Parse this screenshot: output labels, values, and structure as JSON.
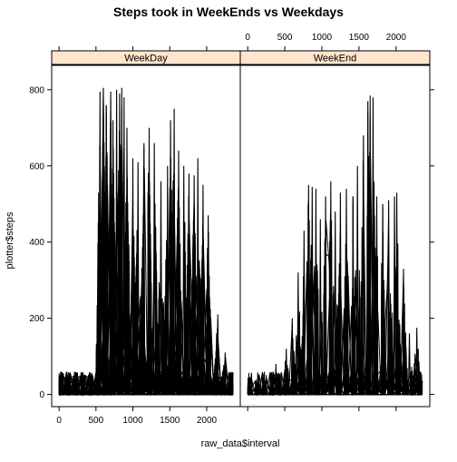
{
  "chart_data": {
    "type": "line",
    "title": "Steps took in WeekEnds vs Weekdays",
    "xlabel": "raw_data$interval",
    "ylabel": "plotter$steps",
    "xlim": [
      -100,
      2455
    ],
    "ylim": [
      -32,
      864
    ],
    "x_ticks": [
      0,
      500,
      1000,
      1500,
      2000
    ],
    "y_ticks": [
      0,
      200,
      400,
      600,
      800
    ],
    "grid": false,
    "strip_color": "#ffe5cc",
    "line_color": "#000000",
    "panels": [
      {
        "name": "WeekDay",
        "x_axis_position": "bottom",
        "peaks": [
          {
            "x": 555,
            "y": 795
          },
          {
            "x": 600,
            "y": 805
          },
          {
            "x": 640,
            "y": 760
          },
          {
            "x": 700,
            "y": 795
          },
          {
            "x": 730,
            "y": 720
          },
          {
            "x": 780,
            "y": 800
          },
          {
            "x": 820,
            "y": 790
          },
          {
            "x": 850,
            "y": 805
          },
          {
            "x": 880,
            "y": 780
          },
          {
            "x": 920,
            "y": 700
          },
          {
            "x": 1000,
            "y": 620
          },
          {
            "x": 1070,
            "y": 610
          },
          {
            "x": 1150,
            "y": 660
          },
          {
            "x": 1220,
            "y": 700
          },
          {
            "x": 1290,
            "y": 660
          },
          {
            "x": 1380,
            "y": 560
          },
          {
            "x": 1470,
            "y": 600
          },
          {
            "x": 1510,
            "y": 720
          },
          {
            "x": 1560,
            "y": 750
          },
          {
            "x": 1620,
            "y": 640
          },
          {
            "x": 1690,
            "y": 600
          },
          {
            "x": 1760,
            "y": 580
          },
          {
            "x": 1830,
            "y": 575
          },
          {
            "x": 1880,
            "y": 620
          },
          {
            "x": 1950,
            "y": 550
          },
          {
            "x": 2020,
            "y": 470
          },
          {
            "x": 2150,
            "y": 210
          },
          {
            "x": 2250,
            "y": 110
          }
        ]
      },
      {
        "name": "WeekEnd",
        "x_axis_position": "top",
        "peaks": [
          {
            "x": 50,
            "y": 55
          },
          {
            "x": 380,
            "y": 80
          },
          {
            "x": 520,
            "y": 120
          },
          {
            "x": 600,
            "y": 200
          },
          {
            "x": 680,
            "y": 320
          },
          {
            "x": 760,
            "y": 430
          },
          {
            "x": 820,
            "y": 550
          },
          {
            "x": 870,
            "y": 545
          },
          {
            "x": 920,
            "y": 540
          },
          {
            "x": 980,
            "y": 460
          },
          {
            "x": 1050,
            "y": 520
          },
          {
            "x": 1120,
            "y": 560
          },
          {
            "x": 1180,
            "y": 480
          },
          {
            "x": 1250,
            "y": 530
          },
          {
            "x": 1330,
            "y": 540
          },
          {
            "x": 1420,
            "y": 520
          },
          {
            "x": 1480,
            "y": 600
          },
          {
            "x": 1560,
            "y": 680
          },
          {
            "x": 1620,
            "y": 770
          },
          {
            "x": 1650,
            "y": 785
          },
          {
            "x": 1690,
            "y": 780
          },
          {
            "x": 1740,
            "y": 520
          },
          {
            "x": 1820,
            "y": 500
          },
          {
            "x": 1900,
            "y": 510
          },
          {
            "x": 1980,
            "y": 520
          },
          {
            "x": 2010,
            "y": 530
          },
          {
            "x": 2100,
            "y": 330
          },
          {
            "x": 2180,
            "y": 160
          },
          {
            "x": 2280,
            "y": 175
          }
        ]
      }
    ]
  }
}
